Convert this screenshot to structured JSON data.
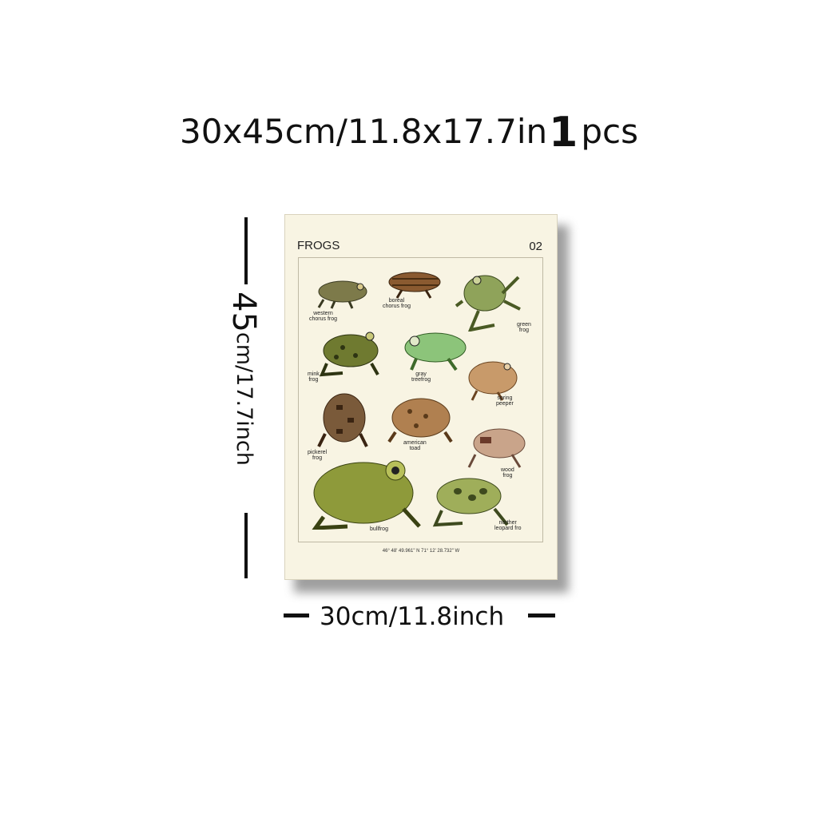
{
  "headline": {
    "size_cm": "30x45cm/11.8x17.7in",
    "quantity": "1",
    "unit": "pcs"
  },
  "dimensions": {
    "height_number": "45",
    "height_rest": "cm/17.7inch",
    "width_label": "30cm/11.8inch"
  },
  "poster": {
    "title": "FROGS",
    "number": "02",
    "coordinates": "46° 48' 49.961\" N 71° 12' 28.732\" W",
    "frogs": [
      {
        "label": "western\nchorus frog",
        "color": "#7d7a4a"
      },
      {
        "label": "boreal\nchorus frog",
        "color": "#8a5a30"
      },
      {
        "label": "green\nfrog",
        "color": "#8fa35a"
      },
      {
        "label": "mink\nfrog",
        "color": "#6f7a30"
      },
      {
        "label": "gray\ntreefrog",
        "color": "#8cc47a"
      },
      {
        "label": "spring\npeeper",
        "color": "#c89a6a"
      },
      {
        "label": "pickerel\nfrog",
        "color": "#7a5a3a"
      },
      {
        "label": "american\ntoad",
        "color": "#b08050"
      },
      {
        "label": "wood\nfrog",
        "color": "#c9a48a"
      },
      {
        "label": "bullfrog",
        "color": "#8e9a3a"
      },
      {
        "label": "norther\nleopard fro",
        "color": "#9fae5a"
      }
    ]
  }
}
